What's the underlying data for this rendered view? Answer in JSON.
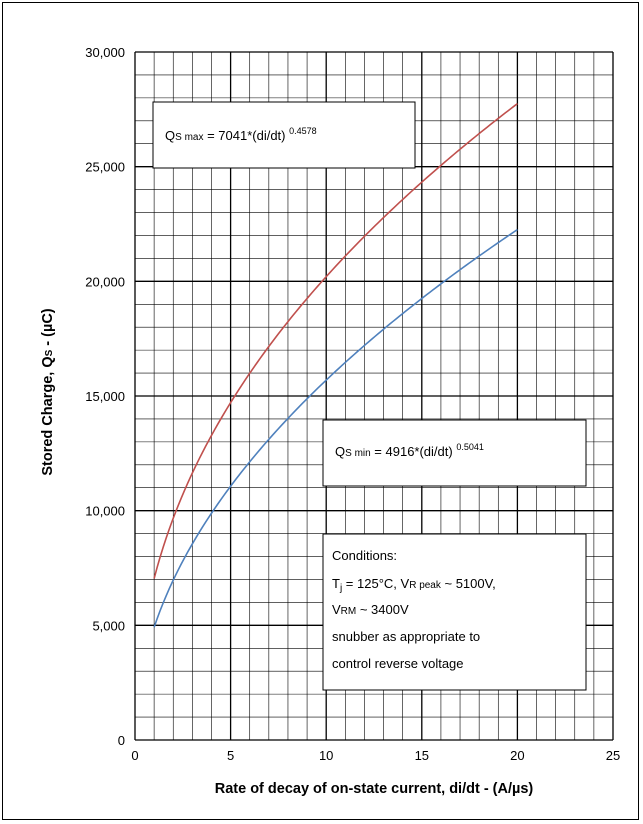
{
  "chart_data": {
    "type": "line",
    "xlabel": "Rate of decay of on-state current, di/dt - (A/µs)",
    "ylabel_prefix": "Stored Charge, Q",
    "ylabel_sub": "S",
    "ylabel_suffix": " - (µC)",
    "xlim": [
      0,
      25
    ],
    "ylim": [
      0,
      30000
    ],
    "x_ticks": [
      "0",
      "5",
      "10",
      "15",
      "20",
      "25"
    ],
    "y_ticks": [
      "0",
      "5,000",
      "10,000",
      "15,000",
      "20,000",
      "25,000",
      "30,000"
    ],
    "grid": true,
    "series": [
      {
        "name": "Qs max",
        "color": "#c0504d",
        "coef": 7041,
        "exp": 0.4578,
        "x_range": [
          1,
          20
        ],
        "sample_points": [
          [
            1,
            7041
          ],
          [
            5,
            14663
          ],
          [
            10,
            20169
          ],
          [
            15,
            24281
          ],
          [
            20,
            27743
          ]
        ]
      },
      {
        "name": "Qs min",
        "color": "#4f81bd",
        "coef": 4916,
        "exp": 0.5041,
        "x_range": [
          1,
          20
        ],
        "sample_points": [
          [
            1,
            4916
          ],
          [
            5,
            11069
          ],
          [
            10,
            15703
          ],
          [
            15,
            19275
          ],
          [
            20,
            22272
          ]
        ]
      }
    ],
    "annotations": {
      "qs_max": {
        "q": "Q",
        "sub": "S max",
        "eq": " = 7041*(di/dt) ",
        "sup": "0.4578"
      },
      "qs_min": {
        "q": "Q",
        "sub": "S min",
        "eq": " = 4916*(di/dt) ",
        "sup": "0.5041"
      },
      "conditions": {
        "title": "Conditions:",
        "line1_a": "T",
        "line1_a_sub": "j",
        "line1_b": " = 125°C, V",
        "line1_b_sub": "R peak",
        "line1_c": " ~ 5100V,",
        "line2_a": "V",
        "line2_a_sub": "RM",
        "line2_b": " ~ 3400V",
        "line3": "snubber as appropriate to",
        "line4": "control reverse voltage"
      }
    }
  }
}
